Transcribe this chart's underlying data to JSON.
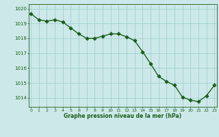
{
  "x": [
    0,
    1,
    2,
    3,
    4,
    5,
    6,
    7,
    8,
    9,
    10,
    11,
    12,
    13,
    14,
    15,
    16,
    17,
    18,
    19,
    20,
    21,
    22,
    23
  ],
  "y": [
    1019.65,
    1019.25,
    1019.15,
    1019.25,
    1019.1,
    1018.7,
    1018.3,
    1018.0,
    1018.0,
    1018.15,
    1018.3,
    1018.3,
    1018.1,
    1017.85,
    1017.1,
    1016.3,
    1015.45,
    1015.1,
    1014.85,
    1014.05,
    1013.85,
    1013.75,
    1014.15,
    1014.85
  ],
  "bg_color": "#cce8e8",
  "line_color": "#1a5e1a",
  "marker_color": "#1a5e1a",
  "grid_color": "#99cccc",
  "axis_color": "#1a5e1a",
  "xlabel": "Graphe pression niveau de la mer (hPa)",
  "xlabel_color": "#1a5e1a",
  "tick_label_color": "#1a5e1a",
  "ylim": [
    1013.4,
    1020.3
  ],
  "yticks": [
    1014,
    1015,
    1016,
    1017,
    1018,
    1019,
    1020
  ],
  "xticks": [
    0,
    1,
    2,
    3,
    4,
    5,
    6,
    7,
    8,
    9,
    10,
    11,
    12,
    13,
    14,
    15,
    16,
    17,
    18,
    19,
    20,
    21,
    22,
    23
  ],
  "line_width": 1.0,
  "marker_size": 2.8,
  "fig_width": 3.2,
  "fig_height": 2.0,
  "dpi": 100
}
